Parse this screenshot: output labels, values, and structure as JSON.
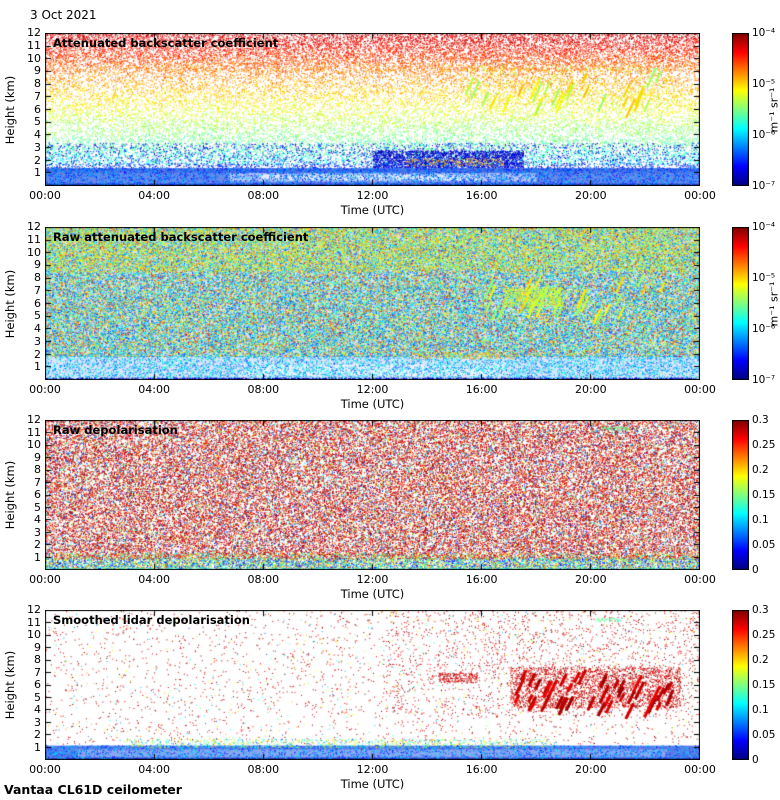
{
  "date_label": "3 Oct 2021",
  "footer": "Vantaa CL61D ceilometer",
  "time_axis": {
    "label": "Time (UTC)",
    "ticks": [
      "00:00",
      "04:00",
      "08:00",
      "12:00",
      "16:00",
      "20:00",
      "00:00"
    ]
  },
  "height_axis": {
    "label": "Height (km)",
    "tick_labels": [
      "12",
      "11",
      "10",
      "9",
      "8",
      "7",
      "6",
      "5",
      "4",
      "3",
      "2",
      "1"
    ],
    "range_km": [
      0,
      12
    ]
  },
  "chart_data": [
    {
      "type": "heatmap",
      "title": "Attenuated backscatter coefficient",
      "x_range": "00:00-24:00 UTC",
      "y_range_km": [
        0,
        12
      ],
      "features": "Range-dependent noise increasing with altitude (blue-green low, yellow mid, red top); aerosol boundary layer below ~1.5 km; fall streaks 16:00-23:00 at 6.5-9 km",
      "colorbar": {
        "scale": "log",
        "range": [
          "1e-7",
          "1e-4"
        ],
        "tick_labels": [
          "10⁻⁴",
          "10⁻⁵",
          "10⁻⁶",
          "10⁻⁷"
        ],
        "unit": "m⁻¹ sr⁻¹"
      },
      "seed": 7,
      "render": {
        "layers": [
          {
            "t": "dots",
            "x": [
              0,
              1
            ],
            "y": [
              1.7,
              12
            ],
            "n": 26000,
            "s": 1,
            "grad": {
              "v0": 0.38,
              "v1": 0.92,
              "j": 0.07
            }
          },
          {
            "t": "dots",
            "x": [
              0,
              1
            ],
            "y": [
              9,
              12
            ],
            "n": 5000,
            "s": 1,
            "grad": {
              "v0": 0.72,
              "v1": 0.94,
              "j": 0.06
            }
          },
          {
            "t": "dots",
            "x": [
              0,
              1
            ],
            "y": [
              1.4,
              3.4
            ],
            "n": 2400,
            "s": 1,
            "v": [
              0.02,
              0.2
            ]
          },
          {
            "t": "dots",
            "x": [
              0.5,
              0.73
            ],
            "y": [
              1.4,
              2.8
            ],
            "n": 2400,
            "s": 1,
            "v": [
              0,
              0.15
            ]
          },
          {
            "t": "dots",
            "x": [
              0.55,
              0.7
            ],
            "y": [
              1.6,
              2.2
            ],
            "n": 230,
            "s": 1,
            "v": [
              0.62,
              0.78
            ]
          },
          {
            "t": "wash",
            "x": [
              0,
              1
            ],
            "y": [
              0,
              1.4
            ],
            "c": "#4f6fe0"
          },
          {
            "t": "wash",
            "x": [
              0,
              1
            ],
            "y": [
              0,
              1.05
            ],
            "c": "#6c88ea"
          },
          {
            "t": "wash",
            "x": [
              0.28,
              0.75
            ],
            "y": [
              0.35,
              1.0
            ],
            "c": "#b9c6f4"
          },
          {
            "t": "wash",
            "x": [
              0.33,
              0.66
            ],
            "y": [
              0.45,
              0.9
            ],
            "c": "#e4eafc"
          },
          {
            "t": "wash",
            "x": [
              0,
              1
            ],
            "y": [
              0,
              0.18
            ],
            "c": "#2034b5"
          },
          {
            "t": "dots",
            "x": [
              0,
              1
            ],
            "y": [
              0,
              1.4
            ],
            "n": 5200,
            "s": 1,
            "v": [
              0.12,
              0.34
            ]
          },
          {
            "t": "dots",
            "x": [
              0,
              1
            ],
            "y": [
              1.25,
              1.8
            ],
            "n": 1000,
            "s": 1,
            "v": [
              0.08,
              0.3
            ]
          },
          {
            "t": "streaks",
            "x": [
              0.64,
              0.95
            ],
            "y": [
              6.6,
              9.4
            ],
            "n": 30,
            "len": 15,
            "dx": -0.45,
            "dy": 1,
            "w": 2,
            "v": [
              0.52,
              0.7
            ]
          },
          {
            "t": "dots",
            "x": [
              0.64,
              0.96
            ],
            "y": [
              6.4,
              9.5
            ],
            "n": 800,
            "s": 1,
            "v": [
              0.5,
              0.72
            ]
          }
        ]
      }
    },
    {
      "type": "heatmap",
      "title": "Raw attenuated backscatter coefficient",
      "x_range": "00:00-24:00 UTC",
      "y_range_km": [
        0,
        12
      ],
      "features": "Dense blue-green speckle noise over whole profile; pale boundary layer below ~2 km; green fall streaks 17:00-23:00 at 5.5-8 km",
      "colorbar": {
        "scale": "log",
        "range": [
          "1e-7",
          "1e-4"
        ],
        "tick_labels": [
          "10⁻⁴",
          "10⁻⁵",
          "10⁻⁶",
          "10⁻⁷"
        ],
        "unit": "m⁻¹ sr⁻¹"
      },
      "seed": 23,
      "render": {
        "layers": [
          {
            "t": "wash",
            "x": [
              0,
              1
            ],
            "y": [
              1.6,
              12
            ],
            "c": "#8fa8e6",
            "a": 0.3
          },
          {
            "t": "dots",
            "x": [
              0,
              1
            ],
            "y": [
              1.6,
              12
            ],
            "n": 90000,
            "s": 1,
            "modes": [
              {
                "p": 0.5,
                "v": [
                  0.16,
                  0.42
                ]
              },
              {
                "p": 0.33,
                "v": [
                  0.44,
                  0.7
                ]
              },
              {
                "p": 0.12,
                "v": [
                  0.7,
                  0.85
                ]
              },
              {
                "p": 0.05,
                "v": [
                  0.85,
                  0.97
                ]
              }
            ]
          },
          {
            "t": "dots",
            "x": [
              0,
              1
            ],
            "y": [
              8.5,
              12
            ],
            "n": 9000,
            "s": 1,
            "v": [
              0.48,
              0.72
            ]
          },
          {
            "t": "streaks",
            "x": [
              0.68,
              0.95
            ],
            "y": [
              5.4,
              8.3
            ],
            "n": 32,
            "len": 14,
            "dx": -0.45,
            "dy": 1,
            "w": 2,
            "v": [
              0.5,
              0.68
            ]
          },
          {
            "t": "dots",
            "x": [
              0.7,
              0.79
            ],
            "y": [
              5.8,
              7.3
            ],
            "n": 700,
            "s": 1,
            "v": [
              0.5,
              0.66
            ]
          },
          {
            "t": "wash",
            "x": [
              0,
              1
            ],
            "y": [
              0,
              1.8
            ],
            "c": "#dde6fb"
          },
          {
            "t": "wash",
            "x": [
              0.3,
              0.7
            ],
            "y": [
              0.3,
              1.2
            ],
            "c": "#eef2fd"
          },
          {
            "t": "dots",
            "x": [
              0,
              1
            ],
            "y": [
              0,
              1.9
            ],
            "n": 6500,
            "s": 1,
            "v": [
              0.18,
              0.45
            ]
          },
          {
            "t": "dots",
            "x": [
              0,
              1
            ],
            "y": [
              0,
              0.2
            ],
            "n": 1500,
            "s": 1,
            "v": [
              0.02,
              0.14
            ]
          },
          {
            "t": "dots",
            "x": [
              0.56,
              0.72
            ],
            "y": [
              1.7,
              2.2
            ],
            "n": 200,
            "s": 1,
            "v": [
              0.6,
              0.78
            ]
          }
        ]
      }
    },
    {
      "type": "heatmap",
      "title": "Raw depolarisation",
      "x_range": "00:00-24:00 UTC",
      "y_range_km": [
        0,
        12
      ],
      "features": "Noise-dominated dark-red/magenta speckle everywhere; low-depolarisation (blue/cyan/green) boundary layer below ~1 km",
      "colorbar": {
        "scale": "linear",
        "range": [
          0,
          0.3
        ],
        "tick_labels": [
          "0.3",
          "0.25",
          "0.2",
          "0.15",
          "0.1",
          "0.05",
          "0"
        ],
        "unit": ""
      },
      "seed": 41,
      "render": {
        "layers": [
          {
            "t": "dots",
            "x": [
              0,
              1
            ],
            "y": [
              0.9,
              12
            ],
            "n": 56000,
            "s": 1,
            "modes": [
              {
                "p": 0.66,
                "v": [
                  0.86,
                  1
                ]
              },
              {
                "p": 0.1,
                "v": [
                  0.66,
                  0.82
                ]
              },
              {
                "p": 0.1,
                "v": [
                  0.4,
                  0.6
                ]
              },
              {
                "p": 0.08,
                "v": [
                  0.16,
                  0.34
                ]
              },
              {
                "p": 0.06,
                "v": [
                  0,
                  0.12
                ]
              }
            ]
          },
          {
            "t": "dots",
            "x": [
              0,
              1
            ],
            "y": [
              0,
              0.95
            ],
            "n": 8500,
            "s": 1,
            "modes": [
              {
                "p": 0.3,
                "v": [
                  0.08,
                  0.22
                ]
              },
              {
                "p": 0.3,
                "v": [
                  0.3,
                  0.5
                ]
              },
              {
                "p": 0.25,
                "v": [
                  0.5,
                  0.68
                ]
              },
              {
                "p": 0.15,
                "v": [
                  0.68,
                  0.85
                ]
              }
            ]
          },
          {
            "t": "dots",
            "x": [
              0,
              1
            ],
            "y": [
              0,
              0.18
            ],
            "n": 900,
            "s": 1,
            "v": [
              0.34,
              0.5
            ]
          },
          {
            "t": "dots",
            "x": [
              0,
              1
            ],
            "y": [
              0.9,
              1.4
            ],
            "n": 1400,
            "s": 1,
            "modes": [
              {
                "p": 0.4,
                "v": [
                  0.3,
                  0.55
                ]
              },
              {
                "p": 0.3,
                "v": [
                  0.55,
                  0.75
                ]
              },
              {
                "p": 0.3,
                "v": [
                  0.86,
                  1
                ]
              }
            ]
          },
          {
            "t": "dots",
            "x": [
              0.85,
              0.89
            ],
            "y": [
              11.2,
              11.5
            ],
            "n": 70,
            "s": 1,
            "v": [
              0.42,
              0.52
            ]
          }
        ]
      }
    },
    {
      "type": "heatmap",
      "title": "Smoothed lidar depolarisation",
      "x_range": "00:00-24:00 UTC",
      "y_range_km": [
        0,
        12
      ],
      "features": "Mostly clean white background with sparse high-depolarisation dots; dense high-depolarisation virga 17:00-23:00 at 4.5-7 km; low-depolarisation aerosol layer below ~1 km with mixed cyan/green top edge 03:00-19:00",
      "colorbar": {
        "scale": "linear",
        "range": [
          0,
          0.3
        ],
        "tick_labels": [
          "0.3",
          "0.25",
          "0.2",
          "0.15",
          "0.1",
          "0.05",
          "0"
        ],
        "unit": ""
      },
      "seed": 59,
      "render": {
        "layers": [
          {
            "t": "dots",
            "x": [
              0,
              1
            ],
            "y": [
              1.3,
              12
            ],
            "n": 2800,
            "s": 1,
            "modes": [
              {
                "p": 0.8,
                "v": [
                  0.86,
                  1
                ]
              },
              {
                "p": 0.12,
                "v": [
                  0.5,
                  0.75
                ]
              },
              {
                "p": 0.08,
                "v": [
                  0.2,
                  0.45
                ]
              }
            ]
          },
          {
            "t": "dots",
            "x": [
              0.52,
              1
            ],
            "y": [
              3.5,
              12
            ],
            "n": 1500,
            "s": 1,
            "modes": [
              {
                "p": 0.85,
                "v": [
                  0.86,
                  1
                ]
              },
              {
                "p": 0.15,
                "v": [
                  0.4,
                  0.7
                ]
              }
            ]
          },
          {
            "t": "streaks",
            "x": [
              0.72,
              0.96
            ],
            "y": [
              4.4,
              7.3
            ],
            "n": 44,
            "len": 13,
            "dx": -0.5,
            "dy": 1,
            "w": 3,
            "v": [
              0.88,
              1
            ]
          },
          {
            "t": "dots",
            "x": [
              0.71,
              0.97
            ],
            "y": [
              4.2,
              7.5
            ],
            "n": 2400,
            "s": 1,
            "v": [
              0.85,
              1
            ]
          },
          {
            "t": "dots",
            "x": [
              0.6,
              0.66
            ],
            "y": [
              6.2,
              7
            ],
            "n": 200,
            "s": 1,
            "v": [
              0.85,
              1
            ]
          },
          {
            "t": "wash",
            "x": [
              0,
              1
            ],
            "y": [
              0,
              1.15
            ],
            "c": "#5d7ae6"
          },
          {
            "t": "wash",
            "x": [
              0.05,
              0.95
            ],
            "y": [
              0.25,
              0.85
            ],
            "c": "#8fa6ef"
          },
          {
            "t": "wash",
            "x": [
              0,
              1
            ],
            "y": [
              0,
              0.15
            ],
            "c": "#2336b8"
          },
          {
            "t": "dots",
            "x": [
              0,
              1
            ],
            "y": [
              0,
              1.2
            ],
            "n": 3200,
            "s": 1,
            "v": [
              0.12,
              0.38
            ]
          },
          {
            "t": "dots",
            "x": [
              0.12,
              0.78
            ],
            "y": [
              1.0,
              1.7
            ],
            "n": 1000,
            "s": 1,
            "modes": [
              {
                "p": 0.5,
                "v": [
                  0.35,
                  0.55
                ]
              },
              {
                "p": 0.3,
                "v": [
                  0.55,
                  0.7
                ]
              },
              {
                "p": 0.2,
                "v": [
                  0.15,
                  0.35
                ]
              }
            ]
          },
          {
            "t": "dots",
            "x": [
              0.84,
              0.88
            ],
            "y": [
              11.1,
              11.4
            ],
            "n": 50,
            "s": 1,
            "v": [
              0.42,
              0.52
            ]
          }
        ]
      }
    }
  ]
}
